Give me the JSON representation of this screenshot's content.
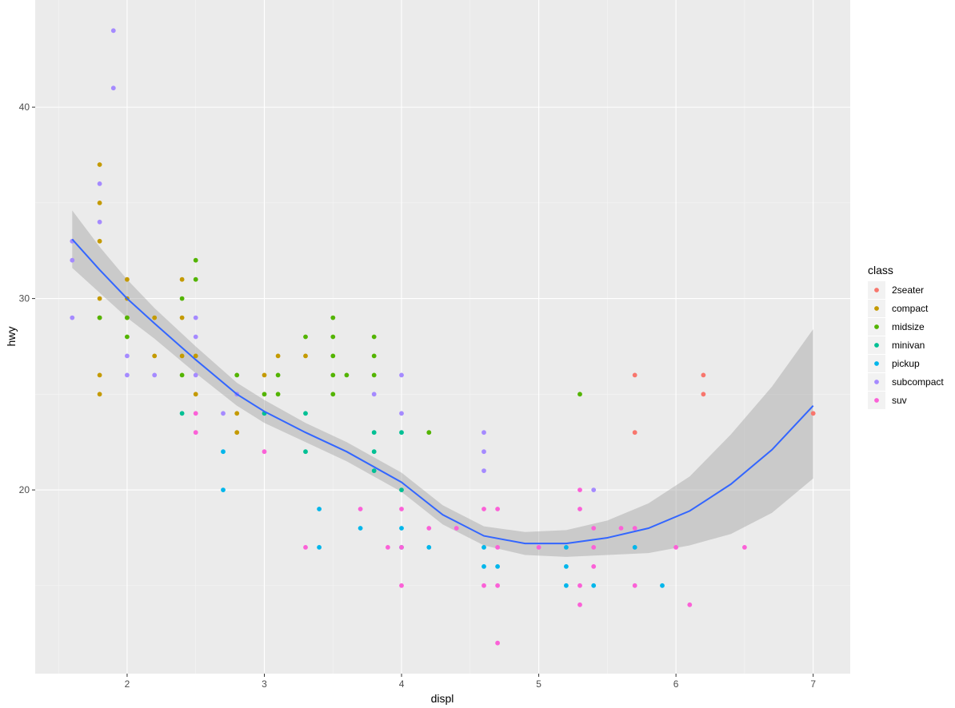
{
  "chart_data": {
    "type": "scatter",
    "xlabel": "displ",
    "ylabel": "hwy",
    "xlim": [
      1.33,
      7.27
    ],
    "ylim": [
      10.4,
      45.6
    ],
    "x_ticks": [
      2,
      3,
      4,
      5,
      6,
      7
    ],
    "y_ticks": [
      20,
      30,
      40
    ],
    "grid": true,
    "legend": {
      "title": "class",
      "position": "right",
      "entries": [
        "2seater",
        "compact",
        "midsize",
        "minivan",
        "pickup",
        "subcompact",
        "suv"
      ]
    },
    "colors": {
      "2seater": "#F8766D",
      "compact": "#C49A00",
      "midsize": "#53B400",
      "minivan": "#00C094",
      "pickup": "#00B6EB",
      "subcompact": "#A58AFF",
      "suv": "#FB61D7",
      "smooth_line": "#3366FF",
      "confidence_band": "#999999",
      "panel": "#EBEBEB"
    },
    "series": [
      {
        "name": "2seater",
        "points": [
          [
            5.7,
            26
          ],
          [
            5.7,
            23
          ],
          [
            6.2,
            26
          ],
          [
            6.2,
            25
          ],
          [
            7.0,
            24
          ]
        ]
      },
      {
        "name": "compact",
        "points": [
          [
            1.8,
            37
          ],
          [
            1.8,
            35
          ],
          [
            1.8,
            33
          ],
          [
            1.8,
            30
          ],
          [
            1.8,
            29
          ],
          [
            1.8,
            26
          ],
          [
            1.8,
            25
          ],
          [
            2.0,
            31
          ],
          [
            2.0,
            30
          ],
          [
            2.0,
            29
          ],
          [
            2.2,
            29
          ],
          [
            2.2,
            27
          ],
          [
            2.4,
            31
          ],
          [
            2.4,
            29
          ],
          [
            2.4,
            27
          ],
          [
            2.5,
            27
          ],
          [
            2.5,
            25
          ],
          [
            2.8,
            24
          ],
          [
            2.8,
            23
          ],
          [
            3.0,
            26
          ],
          [
            3.3,
            27
          ],
          [
            3.1,
            27
          ]
        ]
      },
      {
        "name": "midsize",
        "points": [
          [
            1.8,
            29
          ],
          [
            2.0,
            29
          ],
          [
            2.0,
            28
          ],
          [
            2.4,
            30
          ],
          [
            2.4,
            26
          ],
          [
            2.5,
            32
          ],
          [
            2.5,
            31
          ],
          [
            2.8,
            26
          ],
          [
            3.0,
            25
          ],
          [
            3.1,
            26
          ],
          [
            3.1,
            25
          ],
          [
            3.3,
            28
          ],
          [
            3.5,
            29
          ],
          [
            3.5,
            28
          ],
          [
            3.5,
            27
          ],
          [
            3.5,
            26
          ],
          [
            3.5,
            25
          ],
          [
            3.6,
            26
          ],
          [
            3.8,
            28
          ],
          [
            3.8,
            27
          ],
          [
            3.8,
            26
          ],
          [
            4.2,
            23
          ],
          [
            5.3,
            25
          ]
        ]
      },
      {
        "name": "minivan",
        "points": [
          [
            2.4,
            24
          ],
          [
            3.0,
            24
          ],
          [
            3.3,
            24
          ],
          [
            3.3,
            22
          ],
          [
            3.8,
            23
          ],
          [
            3.8,
            22
          ],
          [
            3.8,
            21
          ],
          [
            4.0,
            23
          ],
          [
            4.0,
            20
          ]
        ]
      },
      {
        "name": "pickup",
        "points": [
          [
            2.7,
            22
          ],
          [
            2.7,
            20
          ],
          [
            3.4,
            19
          ],
          [
            3.4,
            17
          ],
          [
            3.7,
            18
          ],
          [
            4.0,
            18
          ],
          [
            4.0,
            17
          ],
          [
            4.2,
            17
          ],
          [
            4.6,
            17
          ],
          [
            4.6,
            16
          ],
          [
            4.7,
            16
          ],
          [
            5.2,
            17
          ],
          [
            5.2,
            16
          ],
          [
            5.2,
            15
          ],
          [
            5.4,
            15
          ],
          [
            5.7,
            17
          ],
          [
            5.9,
            15
          ]
        ]
      },
      {
        "name": "subcompact",
        "points": [
          [
            1.6,
            33
          ],
          [
            1.6,
            32
          ],
          [
            1.6,
            29
          ],
          [
            1.8,
            36
          ],
          [
            1.8,
            34
          ],
          [
            1.9,
            44
          ],
          [
            1.9,
            41
          ],
          [
            2.0,
            27
          ],
          [
            2.0,
            26
          ],
          [
            2.2,
            26
          ],
          [
            2.5,
            29
          ],
          [
            2.5,
            28
          ],
          [
            2.5,
            26
          ],
          [
            2.7,
            24
          ],
          [
            2.8,
            25
          ],
          [
            3.8,
            25
          ],
          [
            4.0,
            26
          ],
          [
            4.0,
            24
          ],
          [
            4.6,
            23
          ],
          [
            4.6,
            22
          ],
          [
            4.6,
            21
          ],
          [
            5.4,
            20
          ]
        ]
      },
      {
        "name": "suv",
        "points": [
          [
            2.5,
            24
          ],
          [
            2.5,
            23
          ],
          [
            3.0,
            22
          ],
          [
            3.3,
            17
          ],
          [
            3.7,
            19
          ],
          [
            3.9,
            17
          ],
          [
            4.0,
            19
          ],
          [
            4.0,
            17
          ],
          [
            4.0,
            15
          ],
          [
            4.2,
            18
          ],
          [
            4.4,
            18
          ],
          [
            4.6,
            19
          ],
          [
            4.6,
            15
          ],
          [
            4.7,
            19
          ],
          [
            4.7,
            17
          ],
          [
            4.7,
            15
          ],
          [
            4.7,
            12
          ],
          [
            5.0,
            17
          ],
          [
            5.3,
            20
          ],
          [
            5.3,
            19
          ],
          [
            5.3,
            15
          ],
          [
            5.3,
            14
          ],
          [
            5.4,
            18
          ],
          [
            5.4,
            17
          ],
          [
            5.4,
            16
          ],
          [
            5.6,
            18
          ],
          [
            5.7,
            18
          ],
          [
            5.7,
            15
          ],
          [
            6.0,
            17
          ],
          [
            6.1,
            14
          ],
          [
            6.5,
            17
          ]
        ]
      }
    ],
    "smooth": {
      "method": "loess",
      "x": [
        1.6,
        1.8,
        2.0,
        2.2,
        2.5,
        2.8,
        3.0,
        3.3,
        3.6,
        4.0,
        4.3,
        4.6,
        4.9,
        5.2,
        5.5,
        5.8,
        6.1,
        6.4,
        6.7,
        7.0
      ],
      "y": [
        33.1,
        31.5,
        30.0,
        28.7,
        26.8,
        25.0,
        24.1,
        23.0,
        22.0,
        20.4,
        18.7,
        17.6,
        17.2,
        17.2,
        17.5,
        18.0,
        18.9,
        20.3,
        22.1,
        24.4
      ],
      "lower": [
        31.6,
        30.3,
        29.0,
        27.9,
        26.1,
        24.4,
        23.5,
        22.5,
        21.5,
        19.9,
        18.2,
        17.1,
        16.6,
        16.5,
        16.6,
        16.7,
        17.1,
        17.7,
        18.8,
        20.6
      ],
      "upper": [
        34.6,
        32.7,
        31.0,
        29.5,
        27.5,
        25.6,
        24.7,
        23.5,
        22.5,
        20.9,
        19.2,
        18.1,
        17.8,
        17.9,
        18.4,
        19.3,
        20.7,
        22.9,
        25.4,
        28.4
      ]
    }
  }
}
